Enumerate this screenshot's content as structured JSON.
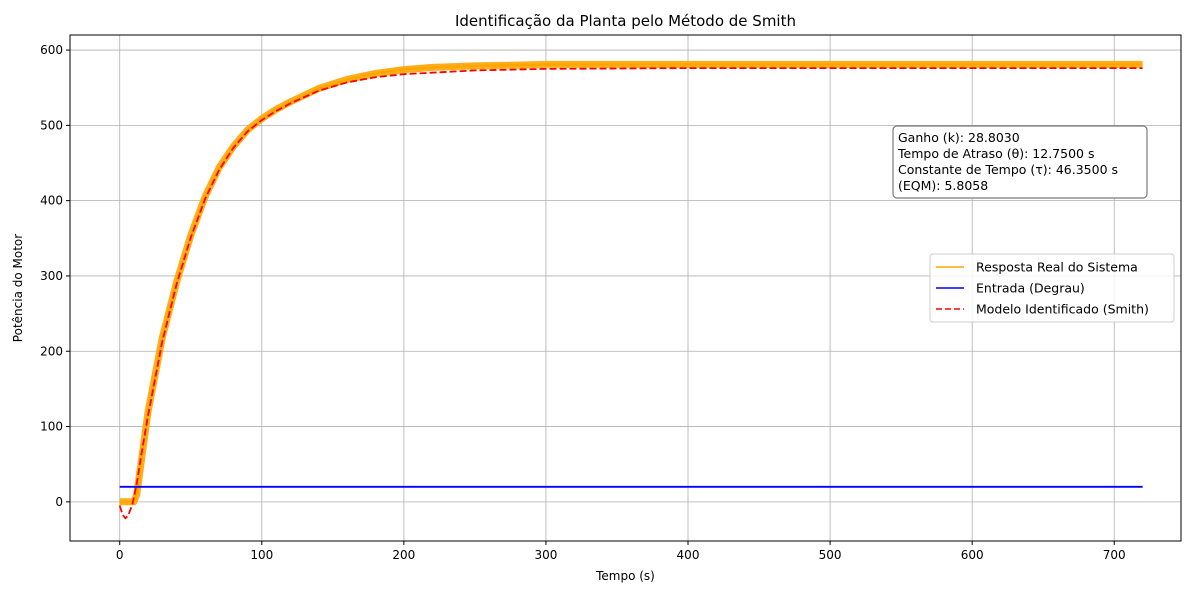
{
  "colors": {
    "real": "#ffa500",
    "input": "#0000ff",
    "model": "#ff0000"
  },
  "chart_data": {
    "type": "line",
    "title": "Identificação da Planta pelo Método de Smith",
    "xlabel": "Tempo (s)",
    "ylabel": "Potência do Motor",
    "xlim": [
      -35,
      747
    ],
    "ylim": [
      -52,
      620
    ],
    "xticks": [
      0,
      100,
      200,
      300,
      400,
      500,
      600,
      700
    ],
    "yticks": [
      0,
      100,
      200,
      300,
      400,
      500,
      600
    ],
    "grid": true,
    "legend_position": "center-right",
    "series": [
      {
        "name": "Resposta Real do Sistema",
        "style": "solid",
        "color": "#ffa500",
        "x": [
          0,
          10,
          12,
          20,
          30,
          40,
          50,
          60,
          70,
          80,
          90,
          100,
          110,
          120,
          140,
          160,
          180,
          200,
          220,
          250,
          280,
          300,
          350,
          400,
          500,
          600,
          720
        ],
        "y": [
          0,
          0,
          10,
          120,
          218,
          292,
          354,
          405,
          444,
          472,
          494,
          509,
          521,
          531,
          549,
          561,
          569,
          574,
          577,
          579,
          580,
          581,
          581,
          581,
          581,
          581,
          581
        ]
      },
      {
        "name": "Entrada (Degrau)",
        "style": "solid",
        "color": "#0000ff",
        "x": [
          0,
          720
        ],
        "y": [
          20,
          20
        ]
      },
      {
        "name": "Modelo Identificado (Smith)",
        "style": "dashed",
        "color": "#ff0000",
        "x": [
          0,
          2,
          4,
          6,
          9,
          12,
          15,
          20,
          30,
          40,
          50,
          60,
          70,
          80,
          90,
          100,
          110,
          120,
          140,
          160,
          180,
          200,
          250,
          300,
          400,
          500,
          600,
          720
        ],
        "y": [
          -5,
          -17,
          -22,
          -18,
          -3,
          25,
          60,
          115,
          213,
          289,
          351,
          402,
          441,
          470,
          492,
          507,
          519,
          529,
          546,
          557,
          564,
          568,
          573,
          575,
          576,
          576,
          576,
          576
        ]
      }
    ],
    "annotation": {
      "lines": [
        "Ganho (k): 28.8030",
        "Tempo de Atraso (θ): 12.7500 s",
        "Constante de Tempo (τ): 46.3500 s",
        "(EQM): 5.8058"
      ],
      "position": "right"
    }
  }
}
